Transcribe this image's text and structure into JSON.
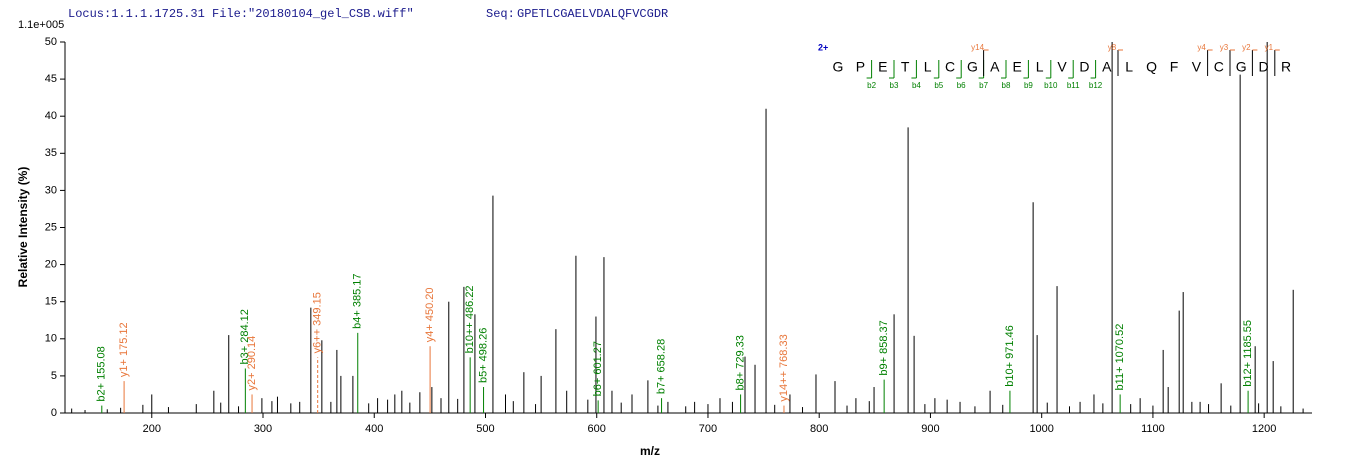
{
  "chart_data": {
    "type": "stem",
    "header": {
      "locus": "Locus:1.1.1.1725.31 File:\"20180104_gel_CSB.wiff\"",
      "seq_label": "Seq:",
      "seq": "GPETLCGAELVDALQFVCGDR"
    },
    "scale_label": "1.1e+005",
    "xlabel": "m/z",
    "ylabel": "Relative  Intensity (%)",
    "xlim": [
      122,
      1243
    ],
    "xticks": [
      200,
      300,
      400,
      500,
      600,
      700,
      800,
      900,
      1000,
      1100,
      1200
    ],
    "ylim": [
      0,
      50
    ],
    "yticks": [
      0,
      5,
      10,
      15,
      20,
      25,
      30,
      35,
      40,
      45,
      50
    ],
    "color": "#000000",
    "x": [
      200,
      255.8,
      269.2,
      299,
      313,
      333,
      343,
      352.9,
      366.4,
      370,
      380.8,
      403,
      418.5,
      424.8,
      441,
      451.8,
      467,
      480.6,
      490.5,
      506.7,
      518,
      534.5,
      550,
      563.3,
      573,
      581.3,
      599.3,
      606.5,
      613.7,
      631.7,
      646,
      664,
      688,
      710.8,
      733.3,
      742.3,
      752.2,
      773.7,
      797.1,
      814.2,
      833,
      849.3,
      867.3,
      879.9,
      885.3,
      904,
      926.6,
      953.6,
      992.3,
      995.9,
      1013.8,
      1034.5,
      1047,
      1063.3,
      1088.5,
      1109.2,
      1113.7,
      1123.6,
      1127.2,
      1142.4,
      1161.3,
      1178.4,
      1191.9,
      1202.7,
      1208.1,
      1226.1,
      128,
      140,
      160,
      172,
      192,
      215,
      240,
      262,
      278,
      308,
      325,
      361,
      395,
      412,
      432,
      460,
      475,
      525,
      545,
      592,
      622,
      655,
      680,
      700,
      722,
      760,
      785,
      825,
      845,
      895,
      915,
      940,
      965,
      1005,
      1025,
      1055,
      1080,
      1100,
      1135,
      1150,
      1170,
      1195,
      1215,
      1235
    ],
    "values": [
      2.5,
      3,
      10.5,
      2,
      2.2,
      1.5,
      14.2,
      9.8,
      8.5,
      5,
      5,
      2,
      2.5,
      3,
      2.8,
      3.5,
      15,
      17,
      13.3,
      29.3,
      2.5,
      5.5,
      5,
      11.3,
      3,
      21.2,
      13,
      21,
      3,
      2.5,
      4.4,
      1.5,
      1.5,
      2,
      7.6,
      6.5,
      41,
      2.5,
      5.2,
      4.3,
      2,
      3.5,
      13.3,
      38.5,
      10.4,
      2,
      1.5,
      3,
      28.4,
      10.5,
      17.1,
      1.5,
      2.5,
      50,
      2,
      8.5,
      3.5,
      13.8,
      16.3,
      1.5,
      4,
      45.6,
      9,
      50,
      7,
      16.6,
      0.6,
      0.4,
      0.5,
      0.7,
      1.1,
      0.8,
      1.2,
      1.4,
      0.9,
      1.6,
      1.3,
      1.5,
      1.3,
      1.8,
      1.4,
      2,
      1.9,
      1.6,
      1.2,
      1.8,
      1.4,
      1,
      0.9,
      1.2,
      1.5,
      1.1,
      0.8,
      1,
      1.6,
      1.2,
      1.8,
      0.9,
      1.1,
      1.4,
      0.9,
      1.3,
      1.2,
      1,
      1.5,
      1.2,
      1,
      1.3,
      0.9,
      0.6
    ],
    "annotated_peaks": [
      {
        "x": 155.08,
        "value": 1,
        "label": "b2+ 155.08",
        "color": "#008000"
      },
      {
        "x": 175.12,
        "value": 4.3,
        "label": "y1+ 175.12",
        "color": "#e8763a"
      },
      {
        "x": 284.12,
        "value": 6,
        "label": "b3+ 284.12",
        "color": "#008000"
      },
      {
        "x": 290.14,
        "value": 2.5,
        "label": "y2+ 290.14",
        "color": "#e8763a"
      },
      {
        "x": 349.15,
        "value": 7.5,
        "label": "y6++ 349.15",
        "color": "#e8763a",
        "dashed": true
      },
      {
        "x": 385.17,
        "value": 10.8,
        "label": "b4+ 385.17",
        "color": "#008000"
      },
      {
        "x": 450.2,
        "value": 9,
        "label": "y4+ 450.20",
        "color": "#e8763a"
      },
      {
        "x": 486.22,
        "value": 7.5,
        "label": "b10++ 486.22",
        "color": "#008000"
      },
      {
        "x": 498.26,
        "value": 3.5,
        "label": "b5+ 498.26",
        "color": "#008000"
      },
      {
        "x": 601.27,
        "value": 1.7,
        "label": "b6+ 601.27",
        "color": "#008000"
      },
      {
        "x": 658.28,
        "value": 2,
        "label": "b7+ 658.28",
        "color": "#008000"
      },
      {
        "x": 729.33,
        "value": 2.5,
        "label": "b8+ 729.33",
        "color": "#008000"
      },
      {
        "x": 768.33,
        "value": 1,
        "label": "y14++ 768.33",
        "color": "#e8763a"
      },
      {
        "x": 858.37,
        "value": 4.5,
        "label": "b9+ 858.37",
        "color": "#008000"
      },
      {
        "x": 971.46,
        "value": 3,
        "label": "b10+ 971.46",
        "color": "#008000"
      },
      {
        "x": 1070.52,
        "value": 2.5,
        "label": "b11+ 1070.52",
        "color": "#008000"
      },
      {
        "x": 1185.55,
        "value": 3,
        "label": "b12+ 1185.55",
        "color": "#008000"
      }
    ],
    "sequence": {
      "charge": "2+",
      "residues": [
        "G",
        "P",
        "E",
        "T",
        "L",
        "C",
        "G",
        "A",
        "E",
        "L",
        "V",
        "D",
        "A",
        "L",
        "Q",
        "F",
        "V",
        "C",
        "G",
        "D",
        "R"
      ],
      "b_ions": [
        {
          "n": 2,
          "label": "b2"
        },
        {
          "n": 3,
          "label": "b3"
        },
        {
          "n": 4,
          "label": "b4"
        },
        {
          "n": 5,
          "label": "b5"
        },
        {
          "n": 6,
          "label": "b6"
        },
        {
          "n": 7,
          "label": "b7"
        },
        {
          "n": 8,
          "label": "b8"
        },
        {
          "n": 9,
          "label": "b9"
        },
        {
          "n": 10,
          "label": "b10"
        },
        {
          "n": 11,
          "label": "b11"
        },
        {
          "n": 12,
          "label": "b12"
        }
      ],
      "y_ions": [
        {
          "n": 14,
          "label": "y14"
        },
        {
          "n": 8,
          "label": "y8"
        },
        {
          "n": 4,
          "label": "y4"
        },
        {
          "n": 3,
          "label": "y3"
        },
        {
          "n": 2,
          "label": "y2"
        },
        {
          "n": 1,
          "label": "y1"
        }
      ],
      "b_color": "#008000",
      "y_color": "#e8763a",
      "charge_color": "#0000c0"
    }
  }
}
